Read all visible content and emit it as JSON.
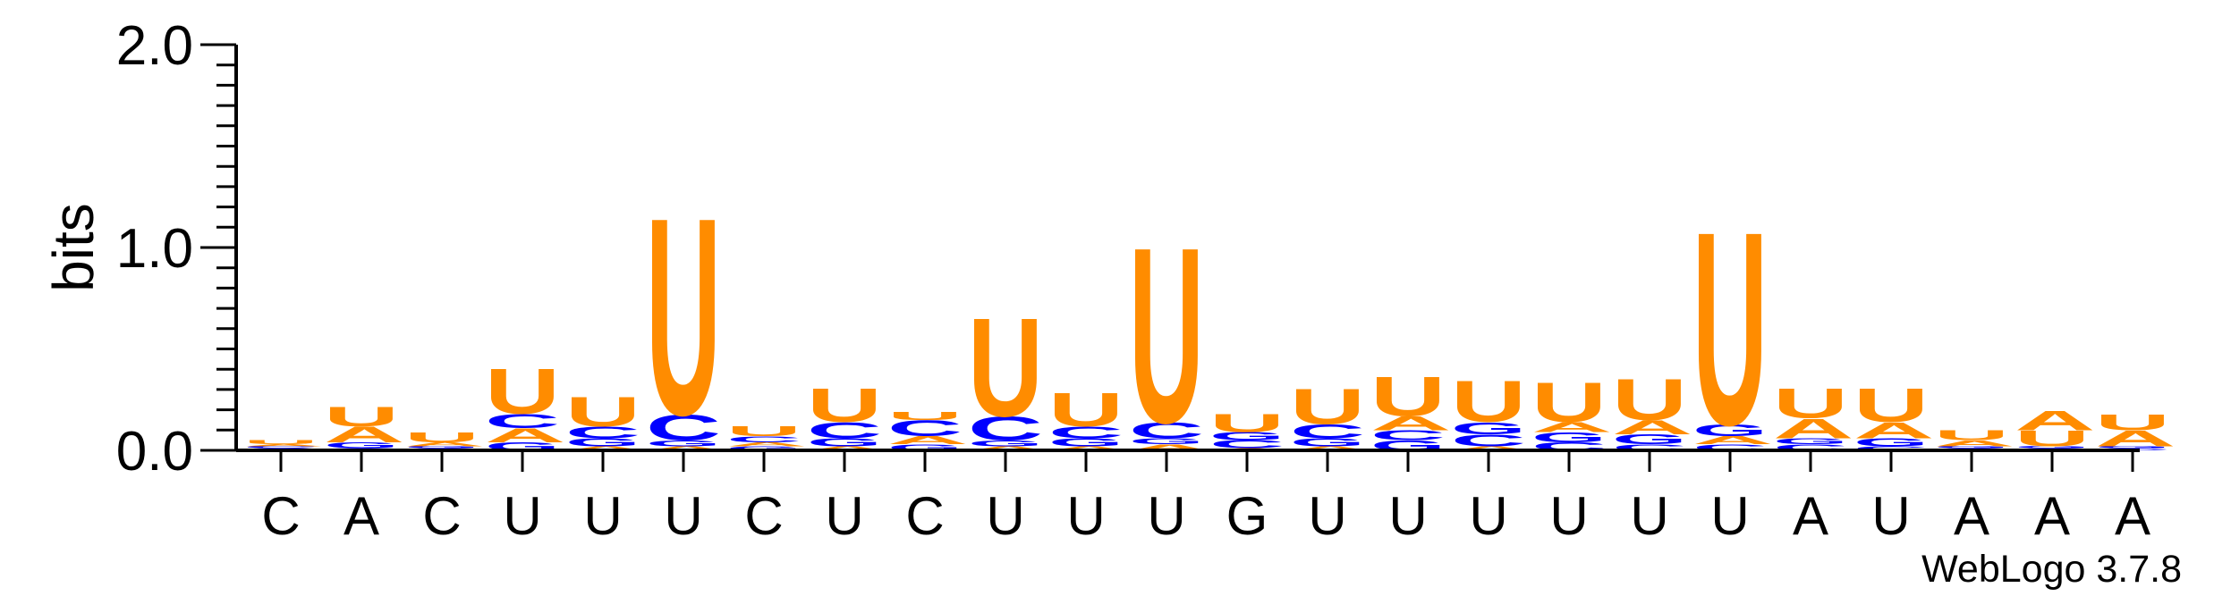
{
  "chart_data": {
    "type": "sequence-logo",
    "ylabel": "bits",
    "ylim": [
      0,
      2.0
    ],
    "yticks": [
      {
        "value": 0.0,
        "label": "0.0"
      },
      {
        "value": 1.0,
        "label": "1.0"
      },
      {
        "value": 2.0,
        "label": "2.0"
      }
    ],
    "consensus": [
      "C",
      "A",
      "C",
      "U",
      "U",
      "U",
      "C",
      "U",
      "C",
      "U",
      "U",
      "U",
      "G",
      "U",
      "U",
      "U",
      "U",
      "U",
      "U",
      "A",
      "U",
      "A",
      "A",
      "A"
    ],
    "colors": {
      "U": "#ff8c00",
      "A": "#ff8c00",
      "C": "#0000ff",
      "G": "#0000ff"
    },
    "stacks": [
      [
        {
          "letter": "G",
          "bits": 0.01
        },
        {
          "letter": "C",
          "bits": 0.01
        },
        {
          "letter": "A",
          "bits": 0.01
        },
        {
          "letter": "U",
          "bits": 0.02
        }
      ],
      [
        {
          "letter": "C",
          "bits": 0.01
        },
        {
          "letter": "G",
          "bits": 0.03
        },
        {
          "letter": "A",
          "bits": 0.08
        },
        {
          "letter": "U",
          "bits": 0.1
        }
      ],
      [
        {
          "letter": "C",
          "bits": 0.01
        },
        {
          "letter": "G",
          "bits": 0.01
        },
        {
          "letter": "A",
          "bits": 0.02
        },
        {
          "letter": "U",
          "bits": 0.05
        }
      ],
      [
        {
          "letter": "G",
          "bits": 0.04
        },
        {
          "letter": "A",
          "bits": 0.07
        },
        {
          "letter": "C",
          "bits": 0.07
        },
        {
          "letter": "U",
          "bits": 0.23
        }
      ],
      [
        {
          "letter": "A",
          "bits": 0.02
        },
        {
          "letter": "G",
          "bits": 0.04
        },
        {
          "letter": "C",
          "bits": 0.06
        },
        {
          "letter": "U",
          "bits": 0.15
        }
      ],
      [
        {
          "letter": "A",
          "bits": 0.02
        },
        {
          "letter": "G",
          "bits": 0.03
        },
        {
          "letter": "C",
          "bits": 0.13
        },
        {
          "letter": "U",
          "bits": 1.0
        }
      ],
      [
        {
          "letter": "G",
          "bits": 0.02
        },
        {
          "letter": "A",
          "bits": 0.02
        },
        {
          "letter": "C",
          "bits": 0.03
        },
        {
          "letter": "U",
          "bits": 0.05
        }
      ],
      [
        {
          "letter": "A",
          "bits": 0.02
        },
        {
          "letter": "G",
          "bits": 0.04
        },
        {
          "letter": "C",
          "bits": 0.08
        },
        {
          "letter": "U",
          "bits": 0.17
        }
      ],
      [
        {
          "letter": "G",
          "bits": 0.03
        },
        {
          "letter": "A",
          "bits": 0.04
        },
        {
          "letter": "C",
          "bits": 0.08
        },
        {
          "letter": "U",
          "bits": 0.04
        }
      ],
      [
        {
          "letter": "A",
          "bits": 0.02
        },
        {
          "letter": "G",
          "bits": 0.03
        },
        {
          "letter": "C",
          "bits": 0.12
        },
        {
          "letter": "U",
          "bits": 0.5
        }
      ],
      [
        {
          "letter": "A",
          "bits": 0.02
        },
        {
          "letter": "G",
          "bits": 0.04
        },
        {
          "letter": "C",
          "bits": 0.06
        },
        {
          "letter": "U",
          "bits": 0.17
        }
      ],
      [
        {
          "letter": "A",
          "bits": 0.03
        },
        {
          "letter": "G",
          "bits": 0.03
        },
        {
          "letter": "C",
          "bits": 0.08
        },
        {
          "letter": "U",
          "bits": 0.89
        }
      ],
      [
        {
          "letter": "A",
          "bits": 0.01
        },
        {
          "letter": "C",
          "bits": 0.04
        },
        {
          "letter": "G",
          "bits": 0.04
        },
        {
          "letter": "U",
          "bits": 0.09
        }
      ],
      [
        {
          "letter": "A",
          "bits": 0.02
        },
        {
          "letter": "G",
          "bits": 0.04
        },
        {
          "letter": "C",
          "bits": 0.07
        },
        {
          "letter": "U",
          "bits": 0.18
        }
      ],
      [
        {
          "letter": "G",
          "bits": 0.05
        },
        {
          "letter": "C",
          "bits": 0.05
        },
        {
          "letter": "A",
          "bits": 0.07
        },
        {
          "letter": "U",
          "bits": 0.2
        }
      ],
      [
        {
          "letter": "A",
          "bits": 0.02
        },
        {
          "letter": "C",
          "bits": 0.06
        },
        {
          "letter": "G",
          "bits": 0.06
        },
        {
          "letter": "U",
          "bits": 0.21
        }
      ],
      [
        {
          "letter": "C",
          "bits": 0.04
        },
        {
          "letter": "G",
          "bits": 0.05
        },
        {
          "letter": "A",
          "bits": 0.05
        },
        {
          "letter": "U",
          "bits": 0.2
        }
      ],
      [
        {
          "letter": "C",
          "bits": 0.03
        },
        {
          "letter": "G",
          "bits": 0.05
        },
        {
          "letter": "A",
          "bits": 0.07
        },
        {
          "letter": "U",
          "bits": 0.21
        }
      ],
      [
        {
          "letter": "C",
          "bits": 0.03
        },
        {
          "letter": "A",
          "bits": 0.04
        },
        {
          "letter": "G",
          "bits": 0.06
        },
        {
          "letter": "U",
          "bits": 0.98
        }
      ],
      [
        {
          "letter": "C",
          "bits": 0.03
        },
        {
          "letter": "G",
          "bits": 0.03
        },
        {
          "letter": "A",
          "bits": 0.1
        },
        {
          "letter": "U",
          "bits": 0.15
        }
      ],
      [
        {
          "letter": "C",
          "bits": 0.02
        },
        {
          "letter": "G",
          "bits": 0.04
        },
        {
          "letter": "A",
          "bits": 0.08
        },
        {
          "letter": "U",
          "bits": 0.17
        }
      ],
      [
        {
          "letter": "C",
          "bits": 0.01
        },
        {
          "letter": "G",
          "bits": 0.01
        },
        {
          "letter": "A",
          "bits": 0.03
        },
        {
          "letter": "U",
          "bits": 0.05
        }
      ],
      [
        {
          "letter": "C",
          "bits": 0.01
        },
        {
          "letter": "G",
          "bits": 0.01
        },
        {
          "letter": "U",
          "bits": 0.08
        },
        {
          "letter": "A",
          "bits": 0.1
        }
      ],
      [
        {
          "letter": "C",
          "bits": 0.01
        },
        {
          "letter": "G",
          "bits": 0.01
        },
        {
          "letter": "A",
          "bits": 0.08
        },
        {
          "letter": "U",
          "bits": 0.08
        }
      ]
    ]
  },
  "footer": {
    "credit": "WebLogo 3.7.8"
  }
}
